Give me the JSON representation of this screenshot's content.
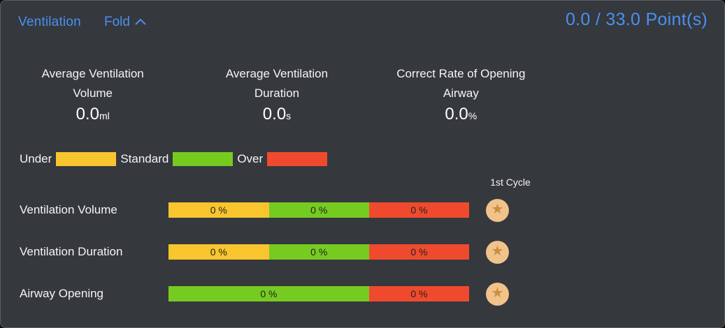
{
  "header": {
    "title": "Ventilation",
    "fold_label": "Fold",
    "points": "0.0 / 33.0 Point(s)"
  },
  "stats": [
    {
      "label_line1": "Average Ventilation",
      "label_line2": "Volume",
      "value": "0.0",
      "unit": "ml"
    },
    {
      "label_line1": "Average Ventilation",
      "label_line2": "Duration",
      "value": "0.0",
      "unit": "s"
    },
    {
      "label_line1": "Correct Rate of Opening",
      "label_line2": "Airway",
      "value": "0.0",
      "unit": "%"
    }
  ],
  "legend": {
    "items": [
      {
        "label": "Under",
        "color": "#f9c52e"
      },
      {
        "label": "Standard",
        "color": "#76cb21"
      },
      {
        "label": "Over",
        "color": "#f04a2e"
      }
    ]
  },
  "cycle_header": "1st Cycle",
  "rows": [
    {
      "label": "Ventilation Volume",
      "segments": [
        {
          "value": "0 %",
          "color": "#f9c52e",
          "width": 33.4
        },
        {
          "value": "0 %",
          "color": "#76cb21",
          "width": 33.3
        },
        {
          "value": "0 %",
          "color": "#f04a2e",
          "width": 33.3
        }
      ]
    },
    {
      "label": "Ventilation Duration",
      "segments": [
        {
          "value": "0 %",
          "color": "#f9c52e",
          "width": 33.4
        },
        {
          "value": "0 %",
          "color": "#76cb21",
          "width": 33.3
        },
        {
          "value": "0 %",
          "color": "#f04a2e",
          "width": 33.3
        }
      ]
    },
    {
      "label": "Airway Opening",
      "segments": [
        {
          "value": "0 %",
          "color": "#76cb21",
          "width": 66.7
        },
        {
          "value": "0 %",
          "color": "#f04a2e",
          "width": 33.3
        }
      ]
    }
  ],
  "icons": {
    "star": "★",
    "chevron_up": "chevron-up"
  },
  "colors": {
    "panel_bg": "#35383d",
    "accent_blue": "#4a90f2",
    "under": "#f9c52e",
    "standard": "#76cb21",
    "over": "#f04a2e",
    "badge_bg": "#f2c28b",
    "badge_star": "#c88f3e",
    "bar_text": "#222222"
  }
}
